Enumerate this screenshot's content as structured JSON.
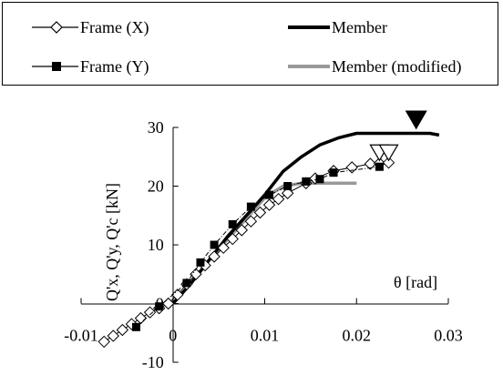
{
  "legend": [
    {
      "label": "Frame (X)",
      "marker": "diamond-open",
      "line": "solid-thin",
      "color": "#000000"
    },
    {
      "label": "Member",
      "marker": "none",
      "line": "solid-thick",
      "color": "#000000"
    },
    {
      "label": "Frame (Y)",
      "marker": "square-filled",
      "line": "solid-thin",
      "color": "#000000"
    },
    {
      "label": "Member (modified)",
      "marker": "none",
      "line": "solid-thick",
      "color": "#999999"
    }
  ],
  "chart_data": {
    "type": "line",
    "xlabel": "θ [rad]",
    "ylabel": "Q'x, Q'y, Q'c [kN]",
    "xlim": [
      -0.01,
      0.03
    ],
    "ylim": [
      -10,
      30
    ],
    "xticks": [
      -0.01,
      0,
      0.01,
      0.02,
      0.03
    ],
    "xtick_labels": [
      "-0.01",
      "0",
      "0.01",
      "0.02",
      "0.03"
    ],
    "yticks": [
      -10,
      0,
      10,
      20,
      30
    ],
    "ytick_labels": [
      "-10",
      "0",
      "10",
      "20",
      "30"
    ],
    "legend_position": "top",
    "grid": false,
    "series": [
      {
        "name": "Frame (X)",
        "color": "#000000",
        "marker": "diamond-open",
        "line": "solid",
        "x": [
          -0.0075,
          -0.0065,
          -0.0055,
          -0.0045,
          -0.0035,
          -0.0025,
          -0.0015,
          -0.0005,
          0.0005,
          0.0015,
          0.0025,
          0.0035,
          0.0045,
          0.0055,
          0.0065,
          0.0075,
          0.0085,
          0.0095,
          0.0105,
          0.0115,
          0.0125,
          0.0145,
          0.0155,
          0.0175,
          0.0195,
          0.0215,
          0.0225,
          0.0235
        ],
        "y": [
          -6.5,
          -5.5,
          -4.5,
          -3.5,
          -2.5,
          -1.5,
          -0.8,
          0,
          1.5,
          3.3,
          5,
          6.5,
          8,
          9.5,
          11,
          12.5,
          14,
          15.5,
          16.8,
          17.8,
          18.8,
          20.5,
          21.3,
          22.6,
          23.2,
          23.8,
          23.9,
          24
        ]
      },
      {
        "name": "Frame (Y)",
        "color": "#000000",
        "marker": "square-filled",
        "line": "dash-dot",
        "x": [
          -0.004,
          -0.0015,
          0.0015,
          0.003,
          0.0045,
          0.0065,
          0.0085,
          0.0105,
          0.0125,
          0.0145,
          0.016,
          0.0175,
          0.0225
        ],
        "y": [
          -4,
          -0.5,
          3.5,
          7,
          10,
          13.5,
          16.5,
          18.5,
          20,
          20.8,
          21.2,
          22.3,
          23.3
        ]
      },
      {
        "name": "Member",
        "color": "#000000",
        "marker": "none",
        "line": "thick",
        "x": [
          0,
          0.002,
          0.004,
          0.006,
          0.008,
          0.01,
          0.012,
          0.014,
          0.016,
          0.018,
          0.02,
          0.026,
          0.028,
          0.029
        ],
        "y": [
          0,
          3.5,
          7.5,
          11.5,
          15,
          18.5,
          22.5,
          25,
          27,
          28.2,
          29,
          29,
          29,
          28.7
        ]
      },
      {
        "name": "Member (modified)",
        "color": "#999999",
        "marker": "none",
        "line": "thick",
        "x": [
          0,
          0.002,
          0.004,
          0.006,
          0.008,
          0.01,
          0.012,
          0.014,
          0.016,
          0.018,
          0.02
        ],
        "y": [
          0,
          3.5,
          7.5,
          11,
          14.5,
          18,
          20,
          20.5,
          20.5,
          20.5,
          20.5
        ]
      }
    ],
    "annotations": [
      {
        "marker": "triangle-down-filled",
        "x": 0.0265,
        "y": 31.3
      },
      {
        "marker": "triangle-down-open",
        "x": 0.0225,
        "y": 25.7
      },
      {
        "marker": "triangle-down-open",
        "x": 0.0235,
        "y": 25.7
      }
    ]
  }
}
